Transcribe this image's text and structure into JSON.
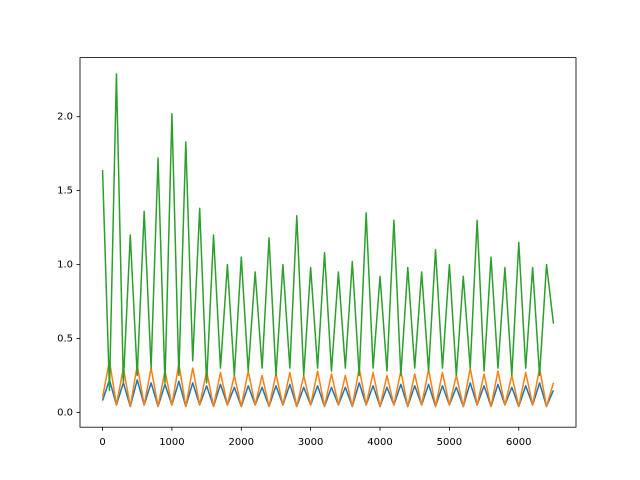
{
  "chart_data": {
    "type": "line",
    "x": [
      0,
      100,
      200,
      300,
      400,
      500,
      600,
      700,
      800,
      900,
      1000,
      1100,
      1200,
      1300,
      1400,
      1500,
      1600,
      1700,
      1800,
      1900,
      2000,
      2100,
      2200,
      2300,
      2400,
      2500,
      2600,
      2700,
      2800,
      2900,
      3000,
      3100,
      3200,
      3300,
      3400,
      3500,
      3600,
      3700,
      3800,
      3900,
      4000,
      4100,
      4200,
      4300,
      4400,
      4500,
      4600,
      4700,
      4800,
      4900,
      5000,
      5100,
      5200,
      5300,
      5400,
      5500,
      5600,
      5700,
      5800,
      5900,
      6000,
      6100,
      6200,
      6300,
      6400,
      6500
    ],
    "series": [
      {
        "color": "#1f77b4",
        "values": [
          0.08,
          0.22,
          0.05,
          0.2,
          0.04,
          0.22,
          0.05,
          0.2,
          0.04,
          0.19,
          0.05,
          0.21,
          0.04,
          0.2,
          0.05,
          0.18,
          0.04,
          0.19,
          0.05,
          0.17,
          0.04,
          0.18,
          0.05,
          0.17,
          0.04,
          0.18,
          0.05,
          0.19,
          0.04,
          0.17,
          0.05,
          0.18,
          0.04,
          0.17,
          0.05,
          0.17,
          0.04,
          0.2,
          0.05,
          0.18,
          0.04,
          0.17,
          0.05,
          0.19,
          0.04,
          0.18,
          0.05,
          0.19,
          0.04,
          0.18,
          0.05,
          0.17,
          0.04,
          0.2,
          0.05,
          0.18,
          0.04,
          0.19,
          0.05,
          0.17,
          0.04,
          0.18,
          0.05,
          0.2,
          0.04,
          0.15
        ]
      },
      {
        "color": "#ff7f0e",
        "values": [
          0.1,
          0.35,
          0.05,
          0.3,
          0.04,
          0.32,
          0.05,
          0.3,
          0.04,
          0.28,
          0.05,
          0.33,
          0.04,
          0.3,
          0.05,
          0.28,
          0.04,
          0.27,
          0.05,
          0.25,
          0.04,
          0.28,
          0.05,
          0.25,
          0.04,
          0.26,
          0.05,
          0.27,
          0.04,
          0.25,
          0.05,
          0.28,
          0.04,
          0.26,
          0.05,
          0.25,
          0.04,
          0.3,
          0.05,
          0.27,
          0.04,
          0.25,
          0.05,
          0.28,
          0.04,
          0.26,
          0.05,
          0.29,
          0.04,
          0.27,
          0.05,
          0.25,
          0.04,
          0.3,
          0.05,
          0.26,
          0.04,
          0.28,
          0.05,
          0.25,
          0.04,
          0.27,
          0.05,
          0.3,
          0.04,
          0.2
        ]
      },
      {
        "color": "#2ca02c",
        "values": [
          1.64,
          0.15,
          2.29,
          0.2,
          1.2,
          0.25,
          1.36,
          0.3,
          1.72,
          0.2,
          2.02,
          0.25,
          1.83,
          0.35,
          1.38,
          0.2,
          1.2,
          0.3,
          1.0,
          0.25,
          1.05,
          0.28,
          0.95,
          0.3,
          1.18,
          0.25,
          1.0,
          0.3,
          1.33,
          0.25,
          0.98,
          0.3,
          1.08,
          0.28,
          0.95,
          0.3,
          1.02,
          0.25,
          1.35,
          0.3,
          0.92,
          0.28,
          1.3,
          0.25,
          0.98,
          0.3,
          0.95,
          0.28,
          1.1,
          0.3,
          1.0,
          0.25,
          0.92,
          0.3,
          1.3,
          0.28,
          1.05,
          0.3,
          0.98,
          0.25,
          1.15,
          0.3,
          0.98,
          0.25,
          1.0,
          0.6
        ]
      }
    ],
    "xlim": [
      -325,
      6825
    ],
    "xticks": [
      0,
      1000,
      2000,
      3000,
      4000,
      5000,
      6000
    ],
    "ylim": [
      -0.1,
      2.4
    ],
    "yticks": [
      {
        "value": 0,
        "label": "0.0"
      },
      {
        "value": 0.5,
        "label": "0.5"
      },
      {
        "value": 1,
        "label": "1.0"
      },
      {
        "value": 1.5,
        "label": "1.5"
      },
      {
        "value": 2,
        "label": "2.0"
      }
    ]
  }
}
